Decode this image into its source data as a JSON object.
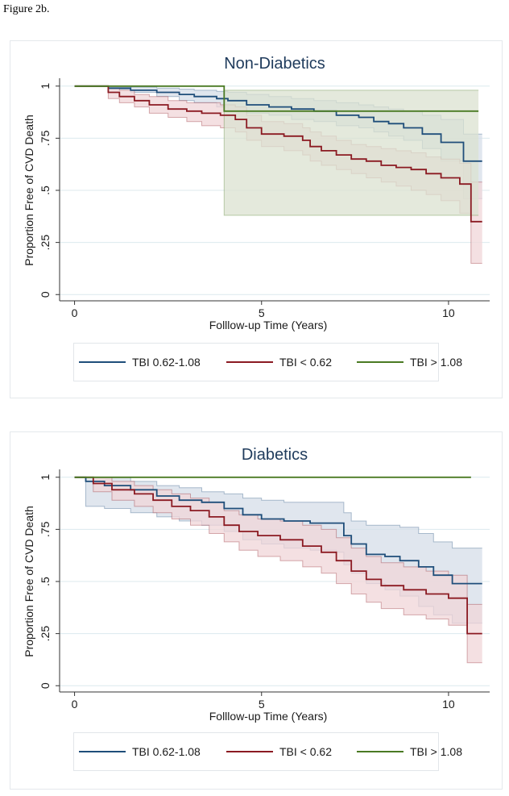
{
  "figure_label": "Figure 2b.",
  "colors": {
    "blue": "#1f4e7a",
    "red": "#8b1a22",
    "green": "#4a7a23",
    "blue_band": "#d6dde8",
    "red_band": "#f0d6d8",
    "green_band": "#dbe1d0",
    "grid": "#dce9ee"
  },
  "chart_data": [
    {
      "type": "line",
      "title": "Non-Diabetics",
      "xlabel": "Folllow-up Time (Years)",
      "ylabel": "Proportion Free of CVD Death",
      "xlim": [
        -0.4,
        11.1
      ],
      "ylim": [
        -0.03,
        1.03
      ],
      "xticks": [
        0,
        5,
        10
      ],
      "xtick_labels": [
        "0",
        "5",
        "10"
      ],
      "yticks": [
        0,
        0.25,
        0.5,
        0.75,
        1
      ],
      "ytick_labels": [
        "0",
        ".25",
        ".5",
        ".75",
        "1"
      ],
      "legend": [
        "TBI 0.62-1.08",
        "TBI < 0.62",
        "TBI > 1.08"
      ],
      "series": [
        {
          "name": "TBI 0.62-1.08",
          "color_key": "blue",
          "x": [
            0,
            0.9,
            1.5,
            2.2,
            2.8,
            3.2,
            3.8,
            4.1,
            4.6,
            5.2,
            5.8,
            6.4,
            7.0,
            7.6,
            8.0,
            8.4,
            8.8,
            9.3,
            9.8,
            10.4,
            10.9
          ],
          "y": [
            1,
            0.99,
            0.98,
            0.97,
            0.96,
            0.95,
            0.94,
            0.93,
            0.91,
            0.9,
            0.89,
            0.88,
            0.86,
            0.85,
            0.83,
            0.82,
            0.8,
            0.77,
            0.73,
            0.64,
            0.64
          ],
          "lower": [
            1,
            0.985,
            0.97,
            0.95,
            0.93,
            0.92,
            0.9,
            0.89,
            0.87,
            0.86,
            0.84,
            0.83,
            0.81,
            0.8,
            0.78,
            0.76,
            0.74,
            0.7,
            0.64,
            0.46,
            0.46
          ],
          "upper": [
            1,
            1,
            0.995,
            0.99,
            0.985,
            0.98,
            0.975,
            0.97,
            0.96,
            0.95,
            0.94,
            0.93,
            0.92,
            0.91,
            0.9,
            0.89,
            0.88,
            0.86,
            0.84,
            0.77,
            0.77
          ]
        },
        {
          "name": "TBI < 0.62",
          "color_key": "red",
          "x": [
            0,
            0.9,
            1.2,
            1.6,
            2.0,
            2.5,
            3.0,
            3.4,
            3.9,
            4.3,
            4.6,
            5.0,
            5.6,
            6.1,
            6.3,
            6.6,
            7.0,
            7.4,
            7.8,
            8.2,
            8.6,
            9.0,
            9.4,
            9.8,
            10.3,
            10.6,
            10.9
          ],
          "y": [
            1,
            0.97,
            0.95,
            0.93,
            0.91,
            0.89,
            0.88,
            0.87,
            0.86,
            0.84,
            0.8,
            0.77,
            0.76,
            0.74,
            0.71,
            0.69,
            0.67,
            0.65,
            0.64,
            0.62,
            0.61,
            0.6,
            0.58,
            0.56,
            0.53,
            0.35,
            0.35
          ],
          "lower": [
            1,
            0.94,
            0.92,
            0.9,
            0.87,
            0.85,
            0.83,
            0.81,
            0.8,
            0.78,
            0.74,
            0.71,
            0.69,
            0.67,
            0.64,
            0.62,
            0.6,
            0.58,
            0.56,
            0.54,
            0.52,
            0.5,
            0.48,
            0.45,
            0.39,
            0.15,
            0.15
          ],
          "upper": [
            1,
            0.99,
            0.98,
            0.96,
            0.95,
            0.93,
            0.92,
            0.92,
            0.91,
            0.9,
            0.86,
            0.83,
            0.82,
            0.8,
            0.78,
            0.76,
            0.74,
            0.72,
            0.71,
            0.7,
            0.69,
            0.68,
            0.66,
            0.65,
            0.63,
            0.54,
            0.54
          ]
        },
        {
          "name": "TBI > 1.08",
          "color_key": "green",
          "x": [
            0,
            4.0,
            10.8
          ],
          "y": [
            1,
            0.88,
            0.88
          ],
          "lower": [
            1,
            0.38,
            0.38
          ],
          "upper": [
            1,
            0.98,
            0.98
          ]
        }
      ]
    },
    {
      "type": "line",
      "title": "Diabetics",
      "xlabel": "Folllow-up Time (Years)",
      "ylabel": "Proportion Free of CVD Death",
      "xlim": [
        -0.4,
        11.1
      ],
      "ylim": [
        -0.03,
        1.03
      ],
      "xticks": [
        0,
        5,
        10
      ],
      "xtick_labels": [
        "0",
        "5",
        "10"
      ],
      "yticks": [
        0,
        0.25,
        0.5,
        0.75,
        1
      ],
      "ytick_labels": [
        "0",
        ".25",
        ".5",
        ".75",
        "1"
      ],
      "legend": [
        "TBI 0.62-1.08",
        "TBI < 0.62",
        "TBI > 1.08"
      ],
      "series": [
        {
          "name": "TBI 0.62-1.08",
          "color_key": "blue",
          "x": [
            0,
            0.3,
            0.8,
            1.5,
            2.2,
            2.8,
            3.4,
            4.0,
            4.5,
            5.0,
            5.6,
            6.3,
            7.0,
            7.2,
            7.4,
            7.8,
            8.3,
            8.7,
            9.2,
            9.6,
            10.1,
            10.9
          ],
          "y": [
            1,
            0.98,
            0.96,
            0.94,
            0.91,
            0.89,
            0.88,
            0.85,
            0.82,
            0.8,
            0.79,
            0.78,
            0.78,
            0.72,
            0.68,
            0.63,
            0.62,
            0.6,
            0.57,
            0.53,
            0.49,
            0.49
          ],
          "lower": [
            1,
            0.86,
            0.85,
            0.83,
            0.81,
            0.79,
            0.77,
            0.74,
            0.7,
            0.68,
            0.66,
            0.65,
            0.64,
            0.58,
            0.54,
            0.49,
            0.46,
            0.43,
            0.38,
            0.34,
            0.3,
            0.3
          ],
          "upper": [
            1,
            1,
            1,
            0.98,
            0.96,
            0.95,
            0.93,
            0.92,
            0.9,
            0.89,
            0.88,
            0.88,
            0.88,
            0.83,
            0.79,
            0.77,
            0.77,
            0.76,
            0.73,
            0.69,
            0.66,
            0.66
          ]
        },
        {
          "name": "TBI < 0.62",
          "color_key": "red",
          "x": [
            0,
            0.5,
            1.0,
            1.6,
            2.1,
            2.6,
            3.1,
            3.6,
            4.0,
            4.4,
            4.9,
            5.5,
            6.1,
            6.6,
            7.0,
            7.4,
            7.8,
            8.2,
            8.8,
            9.4,
            10.0,
            10.5,
            10.9
          ],
          "y": [
            1,
            0.97,
            0.94,
            0.92,
            0.89,
            0.86,
            0.84,
            0.81,
            0.77,
            0.74,
            0.72,
            0.7,
            0.67,
            0.64,
            0.6,
            0.55,
            0.51,
            0.48,
            0.46,
            0.44,
            0.42,
            0.25,
            0.25
          ],
          "lower": [
            1,
            0.93,
            0.89,
            0.86,
            0.83,
            0.8,
            0.77,
            0.73,
            0.69,
            0.65,
            0.62,
            0.6,
            0.57,
            0.54,
            0.49,
            0.44,
            0.4,
            0.37,
            0.34,
            0.32,
            0.29,
            0.11,
            0.11
          ],
          "upper": [
            1,
            1,
            0.98,
            0.96,
            0.94,
            0.92,
            0.9,
            0.88,
            0.84,
            0.82,
            0.8,
            0.79,
            0.77,
            0.75,
            0.71,
            0.66,
            0.62,
            0.59,
            0.57,
            0.55,
            0.53,
            0.39,
            0.39
          ]
        },
        {
          "name": "TBI > 1.08",
          "color_key": "green",
          "x": [
            0,
            10.6
          ],
          "y": [
            1,
            1
          ],
          "lower": [
            1,
            1
          ],
          "upper": [
            1,
            1
          ]
        }
      ]
    }
  ]
}
